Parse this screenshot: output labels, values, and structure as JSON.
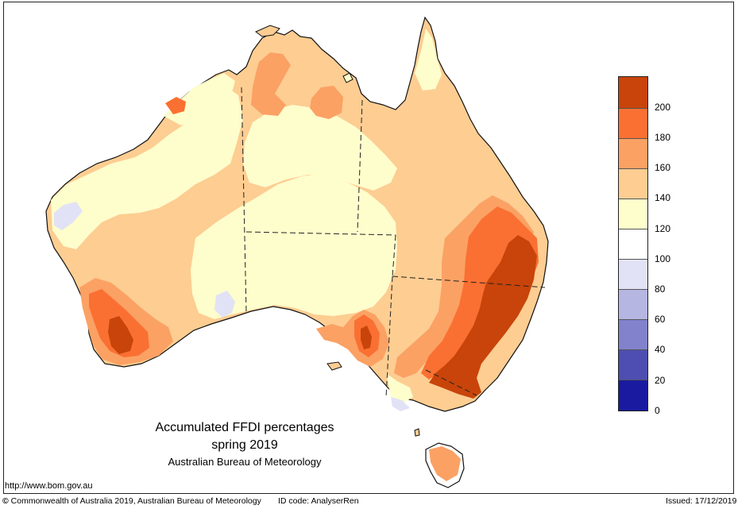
{
  "title": {
    "line1": "Accumulated FFDI percentages",
    "line2": "spring 2019",
    "line3": "Australian Bureau of Meteorology"
  },
  "legend": {
    "labels": [
      "200",
      "180",
      "160",
      "140",
      "120",
      "100",
      "80",
      "60",
      "40",
      "20",
      "0"
    ],
    "colors": [
      "#c8440a",
      "#fa7032",
      "#fba164",
      "#fdcd92",
      "#fefdcc",
      "#ffffff",
      "#e2e2f6",
      "#b6b6e2",
      "#8282cc",
      "#4e4eb2",
      "#1a1aa0"
    ]
  },
  "footer": {
    "url": "http://www.bom.gov.au",
    "copyright_symbol": "©",
    "copyright": "Commonwealth of Australia 2019, Australian Bureau of Meteorology",
    "id_code": "ID code: AnalyserRen",
    "issued": "Issued: 17/12/2019"
  },
  "colors": {
    "ocean": "#ffffff",
    "coast": "#111111",
    "class_120_140": "#fefdcc",
    "class_140_160": "#fdcd92",
    "class_160_180": "#fba164",
    "class_180_200": "#fa7032",
    "class_200_plus": "#c8440a",
    "class_80_100": "#e2e2f6"
  }
}
